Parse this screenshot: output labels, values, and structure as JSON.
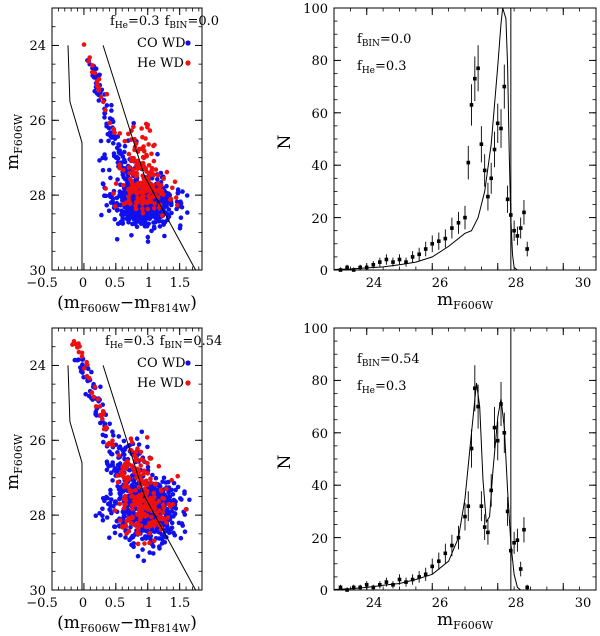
{
  "figure": {
    "panels": [
      {
        "id": "cmd_top",
        "kind": "cmd",
        "annotation": {
          "fhe_main": "f",
          "fhe_sub": "He",
          "fhe_val": "=0.3",
          "fbin_main": "f",
          "fbin_sub": "BIN",
          "fbin_val": "=0.0"
        },
        "legend": [
          {
            "label": "CO WD",
            "color": "#1010ee"
          },
          {
            "label": "He WD",
            "color": "#ee1010"
          }
        ]
      },
      {
        "id": "lf_top",
        "kind": "lf",
        "annotation": {
          "fbin_main": "f",
          "fbin_sub": "BIN",
          "fbin_val": "=0.0",
          "fhe_main": "f",
          "fhe_sub": "He",
          "fhe_val": "=0.3"
        }
      },
      {
        "id": "cmd_bottom",
        "kind": "cmd",
        "annotation": {
          "fhe_main": "f",
          "fhe_sub": "He",
          "fhe_val": "=0.3",
          "fbin_main": "f",
          "fbin_sub": "BIN",
          "fbin_val": "=0.54"
        },
        "legend": [
          {
            "label": "CO WD",
            "color": "#1010ee"
          },
          {
            "label": "He WD",
            "color": "#ee1010"
          }
        ]
      },
      {
        "id": "lf_bottom",
        "kind": "lf",
        "annotation": {
          "fbin_main": "f",
          "fbin_sub": "BIN",
          "fbin_val": "=0.54",
          "fhe_main": "f",
          "fhe_sub": "He",
          "fhe_val": "=0.3"
        }
      }
    ]
  },
  "chart_data": [
    {
      "type": "scatter",
      "title": "",
      "xlabel": {
        "open": "(m",
        "sub1": "F606W",
        "mid": "−m",
        "sub2": "F814W",
        "close": ")"
      },
      "ylabel": {
        "main": "m",
        "sub": "F606W"
      },
      "xlim": [
        -0.5,
        1.85
      ],
      "ylim": [
        30,
        23
      ],
      "xticks": [
        "−0.5",
        "0",
        "0.5",
        "1",
        "1.5"
      ],
      "xtick_values": [
        -0.5,
        0,
        0.5,
        1,
        1.5
      ],
      "yticks": [
        "24",
        "26",
        "28",
        "30"
      ],
      "ytick_values": [
        24,
        26,
        28,
        30
      ],
      "series": [
        {
          "name": "CO WD",
          "color": "#1010ee",
          "clouds": [
            {
              "x": 0.95,
              "y": 28.25,
              "sx": 0.24,
              "sy": 0.32,
              "n": 520
            },
            {
              "x": 0.65,
              "y": 27.35,
              "sx": 0.18,
              "sy": 0.45,
              "n": 55
            }
          ],
          "sequence": {
            "y0": 24.3,
            "y1": 28.0,
            "n": 95,
            "spread": 0.05
          }
        },
        {
          "name": "He WD",
          "color": "#ee1010",
          "clouds": [
            {
              "x": 0.95,
              "y": 27.85,
              "sx": 0.2,
              "sy": 0.3,
              "n": 130
            },
            {
              "x": 0.85,
              "y": 26.9,
              "sx": 0.12,
              "sy": 0.45,
              "n": 65
            }
          ],
          "sequence": {
            "y0": 23.7,
            "y1": 26.4,
            "n": 20,
            "spread": 0.03
          }
        }
      ],
      "bounds": {
        "blue_edge": [
          [
            -0.25,
            24.0
          ],
          [
            -0.22,
            25.5
          ],
          [
            -0.03,
            26.6
          ],
          [
            -0.03,
            30.0
          ]
        ],
        "red_edge": [
          [
            0.3,
            24.0
          ],
          [
            0.95,
            27.5
          ],
          [
            1.75,
            30.0
          ]
        ]
      },
      "seed": 11
    },
    {
      "type": "line",
      "title": "",
      "xlabel": {
        "main": "m",
        "sub": "F606W"
      },
      "ylabel": "N",
      "xlim": [
        23,
        31
      ],
      "ylim": [
        0,
        100
      ],
      "xticks": [
        "24",
        "26",
        "28",
        "30"
      ],
      "xtick_values": [
        24,
        26,
        28,
        30
      ],
      "yticks": [
        "0",
        "20",
        "40",
        "60",
        "80",
        "100"
      ],
      "ytick_values": [
        0,
        20,
        40,
        60,
        80,
        100
      ],
      "vline_x": 28.4,
      "points": [
        [
          23.2,
          0,
          1
        ],
        [
          23.4,
          1,
          1
        ],
        [
          23.6,
          0,
          1
        ],
        [
          23.8,
          1,
          1
        ],
        [
          24.0,
          1,
          1
        ],
        [
          24.2,
          2,
          1.4
        ],
        [
          24.4,
          3,
          1.7
        ],
        [
          24.6,
          4,
          2
        ],
        [
          24.8,
          3,
          1.7
        ],
        [
          25.0,
          4,
          2
        ],
        [
          25.2,
          3,
          1.7
        ],
        [
          25.4,
          5,
          2.2
        ],
        [
          25.6,
          6,
          2.5
        ],
        [
          25.8,
          8,
          2.8
        ],
        [
          26.0,
          10,
          3.2
        ],
        [
          26.2,
          11,
          3.3
        ],
        [
          26.4,
          12,
          3.5
        ],
        [
          26.6,
          16,
          4
        ],
        [
          26.8,
          18,
          4.2
        ],
        [
          27.0,
          20,
          4.5
        ],
        [
          27.1,
          41,
          6.4
        ],
        [
          27.2,
          63,
          7.9
        ],
        [
          27.3,
          73,
          8.5
        ],
        [
          27.4,
          77,
          8.8
        ],
        [
          27.5,
          48,
          6.9
        ],
        [
          27.6,
          38,
          6.2
        ],
        [
          27.7,
          28,
          5.3
        ],
        [
          27.8,
          35,
          5.9
        ],
        [
          27.9,
          46,
          6.8
        ],
        [
          28.0,
          56,
          7.5
        ],
        [
          28.1,
          54,
          7.4
        ],
        [
          28.2,
          70,
          8.4
        ],
        [
          28.3,
          27,
          5.2
        ],
        [
          28.4,
          21,
          4.6
        ],
        [
          28.5,
          15,
          3.9
        ],
        [
          28.6,
          13,
          3.6
        ],
        [
          28.7,
          16,
          4
        ],
        [
          28.8,
          22,
          4.7
        ],
        [
          28.9,
          8,
          2.8
        ]
      ],
      "model": [
        [
          23.0,
          0.2
        ],
        [
          23.5,
          0.4
        ],
        [
          24.0,
          0.8
        ],
        [
          24.5,
          1.2
        ],
        [
          25.0,
          2.0
        ],
        [
          25.5,
          3.0
        ],
        [
          26.0,
          5.0
        ],
        [
          26.5,
          9.0
        ],
        [
          27.0,
          14.0
        ],
        [
          27.2,
          15.0
        ],
        [
          27.4,
          20.0
        ],
        [
          27.6,
          30.0
        ],
        [
          27.8,
          48.0
        ],
        [
          28.0,
          78.0
        ],
        [
          28.1,
          94.0
        ],
        [
          28.15,
          100.0
        ],
        [
          28.25,
          96.0
        ],
        [
          28.3,
          78.0
        ],
        [
          28.35,
          45.0
        ],
        [
          28.4,
          20.0
        ],
        [
          28.45,
          6.0
        ],
        [
          28.5,
          1.0
        ],
        [
          28.6,
          0.0
        ],
        [
          29.0,
          0.0
        ]
      ]
    },
    {
      "type": "scatter",
      "title": "",
      "xlabel": {
        "open": "(m",
        "sub1": "F606W",
        "mid": "−m",
        "sub2": "F814W",
        "close": ")"
      },
      "ylabel": {
        "main": "m",
        "sub": "F606W"
      },
      "xlim": [
        -0.5,
        1.85
      ],
      "ylim": [
        30,
        23
      ],
      "xticks": [
        "−0.5",
        "0",
        "0.5",
        "1",
        "1.5"
      ],
      "xtick_values": [
        -0.5,
        0,
        0.5,
        1,
        1.5
      ],
      "yticks": [
        "24",
        "26",
        "28",
        "30"
      ],
      "ytick_values": [
        24,
        26,
        28,
        30
      ],
      "series": [
        {
          "name": "CO WD",
          "color": "#1010ee",
          "clouds": [
            {
              "x": 0.95,
              "y": 28.05,
              "sx": 0.26,
              "sy": 0.38,
              "n": 360
            },
            {
              "x": 0.95,
              "y": 27.45,
              "sx": 0.27,
              "sy": 0.22,
              "n": 190
            },
            {
              "x": 0.7,
              "y": 26.6,
              "sx": 0.2,
              "sy": 0.4,
              "n": 70
            }
          ],
          "sequence": {
            "y0": 23.8,
            "y1": 27.8,
            "n": 110,
            "spread": 0.06
          }
        },
        {
          "name": "He WD",
          "color": "#ee1010",
          "clouds": [
            {
              "x": 0.95,
              "y": 27.75,
              "sx": 0.2,
              "sy": 0.4,
              "n": 160
            },
            {
              "x": 0.8,
              "y": 26.8,
              "sx": 0.13,
              "sy": 0.4,
              "n": 60
            }
          ],
          "sequence": {
            "y0": 23.0,
            "y1": 26.5,
            "n": 32,
            "spread": 0.04
          }
        }
      ],
      "bounds": {
        "blue_edge": [
          [
            -0.25,
            24.0
          ],
          [
            -0.22,
            25.5
          ],
          [
            -0.03,
            26.6
          ],
          [
            -0.03,
            30.0
          ]
        ],
        "red_edge": [
          [
            0.3,
            24.0
          ],
          [
            0.95,
            27.5
          ],
          [
            1.75,
            30.0
          ]
        ]
      },
      "seed": 23
    },
    {
      "type": "line",
      "title": "",
      "xlabel": {
        "main": "m",
        "sub": "F606W"
      },
      "ylabel": "N",
      "xlim": [
        23,
        31
      ],
      "ylim": [
        0,
        100
      ],
      "xticks": [
        "24",
        "26",
        "28",
        "30"
      ],
      "xtick_values": [
        24,
        26,
        28,
        30
      ],
      "yticks": [
        "0",
        "20",
        "40",
        "60",
        "80",
        "100"
      ],
      "ytick_values": [
        0,
        20,
        40,
        60,
        80,
        100
      ],
      "vline_x": 28.4,
      "points": [
        [
          23.2,
          1,
          1
        ],
        [
          23.4,
          0,
          1
        ],
        [
          23.6,
          1,
          1
        ],
        [
          23.8,
          1,
          1
        ],
        [
          24.0,
          2,
          1.4
        ],
        [
          24.2,
          1,
          1
        ],
        [
          24.4,
          2,
          1.4
        ],
        [
          24.6,
          3,
          1.7
        ],
        [
          24.8,
          2,
          1.4
        ],
        [
          25.0,
          4,
          2
        ],
        [
          25.2,
          3,
          1.7
        ],
        [
          25.4,
          4,
          2
        ],
        [
          25.6,
          5,
          2.2
        ],
        [
          25.8,
          6,
          2.5
        ],
        [
          26.0,
          9,
          3
        ],
        [
          26.2,
          11,
          3.3
        ],
        [
          26.4,
          14,
          3.7
        ],
        [
          26.6,
          17,
          4.1
        ],
        [
          26.8,
          20,
          4.5
        ],
        [
          27.0,
          28,
          5.3
        ],
        [
          27.1,
          32,
          5.7
        ],
        [
          27.2,
          54,
          7.3
        ],
        [
          27.3,
          77,
          8.8
        ],
        [
          27.4,
          70,
          8.4
        ],
        [
          27.5,
          32,
          5.7
        ],
        [
          27.6,
          24,
          4.9
        ],
        [
          27.7,
          22,
          4.7
        ],
        [
          27.8,
          38,
          6.2
        ],
        [
          27.9,
          62,
          7.9
        ],
        [
          28.0,
          57,
          7.5
        ],
        [
          28.1,
          71,
          8.4
        ],
        [
          28.2,
          60,
          7.7
        ],
        [
          28.3,
          30,
          5.5
        ],
        [
          28.4,
          15,
          3.9
        ],
        [
          28.5,
          18,
          4.2
        ],
        [
          28.6,
          19,
          4.4
        ],
        [
          28.7,
          8,
          2.8
        ],
        [
          28.8,
          23,
          4.8
        ],
        [
          28.9,
          1,
          1
        ]
      ],
      "model": [
        [
          23.0,
          0.2
        ],
        [
          23.5,
          0.5
        ],
        [
          24.0,
          1.0
        ],
        [
          24.5,
          1.8
        ],
        [
          25.0,
          2.5
        ],
        [
          25.5,
          4.0
        ],
        [
          26.0,
          6.0
        ],
        [
          26.5,
          11.0
        ],
        [
          26.8,
          20.0
        ],
        [
          27.0,
          35.0
        ],
        [
          27.2,
          60.0
        ],
        [
          27.35,
          79.0
        ],
        [
          27.45,
          70.0
        ],
        [
          27.55,
          42.0
        ],
        [
          27.65,
          26.0
        ],
        [
          27.75,
          28.0
        ],
        [
          27.85,
          45.0
        ],
        [
          28.0,
          66.0
        ],
        [
          28.1,
          73.0
        ],
        [
          28.2,
          62.0
        ],
        [
          28.3,
          38.0
        ],
        [
          28.4,
          18.0
        ],
        [
          28.5,
          6.0
        ],
        [
          28.6,
          1.0
        ],
        [
          28.7,
          0.0
        ],
        [
          29.0,
          0.0
        ]
      ]
    }
  ]
}
